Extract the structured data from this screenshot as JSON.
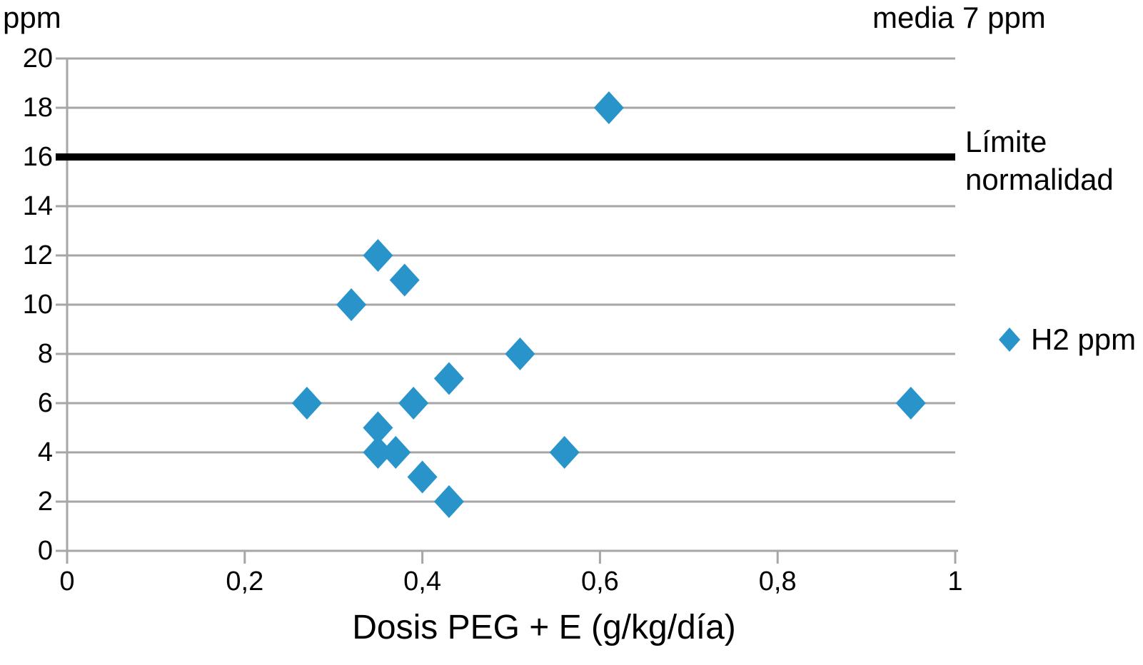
{
  "chart_data": {
    "type": "scatter",
    "title": "",
    "xlabel": "Dosis PEG + E (g/kg/día)",
    "ylabel": "ppm",
    "top_right_annotation": "media 7 ppm",
    "xlim": [
      0,
      1
    ],
    "ylim": [
      0,
      20
    ],
    "x_ticks": [
      0,
      0.2,
      0.4,
      0.6,
      0.8,
      1
    ],
    "x_tick_labels": [
      "0",
      "0,2",
      "0,4",
      "0,6",
      "0,8",
      "1"
    ],
    "y_ticks": [
      0,
      2,
      4,
      6,
      8,
      10,
      12,
      14,
      16,
      18,
      20
    ],
    "grid": "horizontal",
    "gridline_color": "#A6A6A6",
    "axis_color": "#A6A6A6",
    "series": [
      {
        "name": "H2 ppm",
        "marker": "diamond",
        "color": "#2994CA",
        "points": [
          {
            "x": 0.61,
            "y": 18
          },
          {
            "x": 0.35,
            "y": 12
          },
          {
            "x": 0.38,
            "y": 11
          },
          {
            "x": 0.32,
            "y": 10
          },
          {
            "x": 0.51,
            "y": 8
          },
          {
            "x": 0.43,
            "y": 7
          },
          {
            "x": 0.27,
            "y": 6
          },
          {
            "x": 0.39,
            "y": 6
          },
          {
            "x": 0.95,
            "y": 6
          },
          {
            "x": 0.35,
            "y": 5
          },
          {
            "x": 0.35,
            "y": 4
          },
          {
            "x": 0.37,
            "y": 4
          },
          {
            "x": 0.56,
            "y": 4
          },
          {
            "x": 0.4,
            "y": 3
          },
          {
            "x": 0.43,
            "y": 2
          }
        ]
      }
    ],
    "reference_line": {
      "y": 16,
      "color": "#000000",
      "label_lines": [
        "Límite",
        "normalidad"
      ]
    },
    "legend": {
      "position": "right",
      "entries": [
        {
          "label": "H2 ppm",
          "marker": "diamond",
          "color": "#2994CA"
        }
      ]
    }
  }
}
